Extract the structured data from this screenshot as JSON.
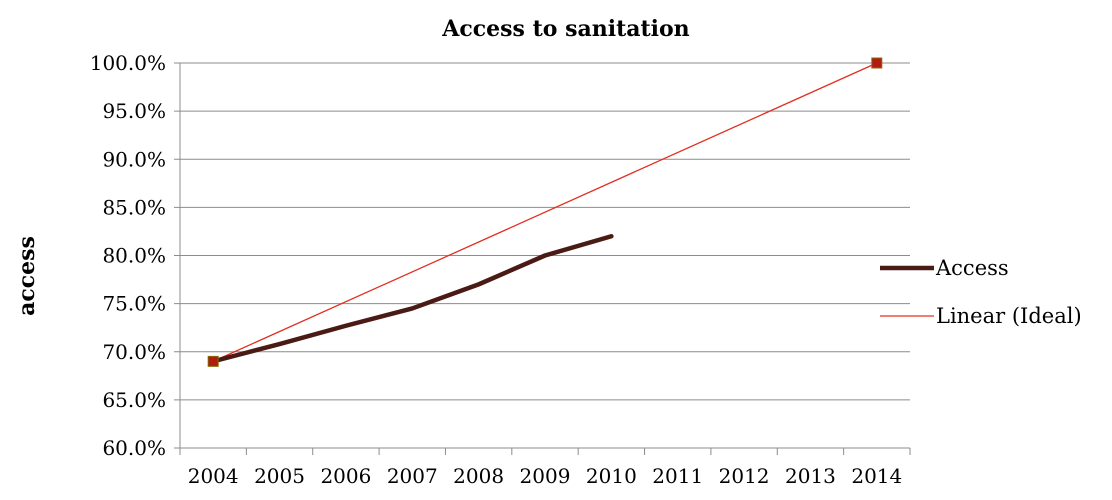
{
  "chart_data": {
    "type": "line",
    "title": "Access to sanitation",
    "xlabel": "",
    "ylabel": "access",
    "categories": [
      "2004",
      "2005",
      "2006",
      "2007",
      "2008",
      "2009",
      "2010",
      "2011",
      "2012",
      "2013",
      "2014"
    ],
    "ylim": [
      0.6,
      1.0
    ],
    "yticks": [
      "60.0%",
      "65.0%",
      "70.0%",
      "75.0%",
      "80.0%",
      "85.0%",
      "90.0%",
      "95.0%",
      "100.0%"
    ],
    "grid": true,
    "legend_position": "right",
    "series": [
      {
        "name": "Access",
        "x": [
          2004,
          2005,
          2006,
          2007,
          2008,
          2009,
          2010
        ],
        "values": [
          0.69,
          0.708,
          0.727,
          0.745,
          0.77,
          0.8,
          0.82
        ],
        "color": "#4a1a14"
      },
      {
        "name": "Linear (Ideal)",
        "x": [
          2004,
          2014
        ],
        "values": [
          0.69,
          1.0
        ],
        "color": "#e03020",
        "marker_color": "#b01c0e"
      }
    ]
  }
}
